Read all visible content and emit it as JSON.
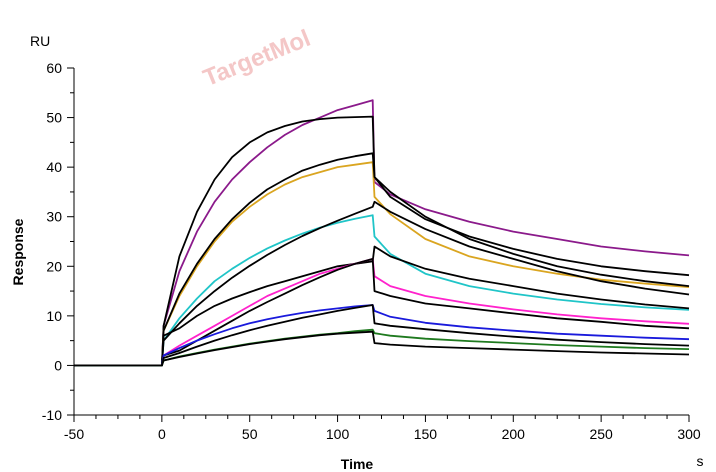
{
  "watermark": "TargetMol",
  "chart_data": {
    "type": "line",
    "title": "",
    "xlabel": "Time",
    "ylabel": "Response",
    "x_unit": "s",
    "y_unit": "RU",
    "xlim": [
      -50,
      300
    ],
    "ylim": [
      -10,
      60
    ],
    "x_ticks": [
      -50,
      0,
      50,
      100,
      150,
      200,
      250,
      300
    ],
    "y_ticks": [
      -10,
      0,
      10,
      20,
      30,
      40,
      50,
      60
    ],
    "grid": false,
    "legend": "none",
    "kinetics": {
      "injection_start": 0,
      "injection_end": 120,
      "baseline_start": -50
    },
    "series": [
      {
        "color": "#8b1a8b",
        "points": [
          [
            -50,
            0
          ],
          [
            0,
            0
          ],
          [
            1,
            8
          ],
          [
            10,
            19
          ],
          [
            20,
            27
          ],
          [
            30,
            33
          ],
          [
            40,
            37.5
          ],
          [
            50,
            41
          ],
          [
            60,
            44
          ],
          [
            70,
            46.5
          ],
          [
            80,
            48.5
          ],
          [
            90,
            50
          ],
          [
            100,
            51.5
          ],
          [
            110,
            52.5
          ],
          [
            120,
            53.5
          ],
          [
            121,
            37
          ],
          [
            130,
            34.5
          ],
          [
            150,
            31.5
          ],
          [
            175,
            29
          ],
          [
            200,
            27
          ],
          [
            225,
            25.5
          ],
          [
            250,
            24
          ],
          [
            275,
            23
          ],
          [
            300,
            22.2
          ]
        ]
      },
      {
        "color": "#000000",
        "points": [
          [
            -50,
            0
          ],
          [
            0,
            0
          ],
          [
            1,
            8
          ],
          [
            10,
            22
          ],
          [
            20,
            31
          ],
          [
            30,
            37.5
          ],
          [
            40,
            42
          ],
          [
            50,
            45
          ],
          [
            60,
            47
          ],
          [
            70,
            48.3
          ],
          [
            80,
            49.2
          ],
          [
            90,
            49.7
          ],
          [
            100,
            50
          ],
          [
            110,
            50.1
          ],
          [
            120,
            50.2
          ],
          [
            121,
            38
          ],
          [
            130,
            34
          ],
          [
            150,
            29.5
          ],
          [
            175,
            26
          ],
          [
            200,
            23.5
          ],
          [
            225,
            21.5
          ],
          [
            250,
            20
          ],
          [
            275,
            19
          ],
          [
            300,
            18.2
          ]
        ]
      },
      {
        "color": "#daa520",
        "points": [
          [
            -50,
            0
          ],
          [
            0,
            0
          ],
          [
            1,
            7
          ],
          [
            10,
            14
          ],
          [
            20,
            20
          ],
          [
            30,
            25
          ],
          [
            40,
            29
          ],
          [
            50,
            32
          ],
          [
            60,
            34.5
          ],
          [
            70,
            36.5
          ],
          [
            80,
            38
          ],
          [
            90,
            39
          ],
          [
            100,
            40
          ],
          [
            110,
            40.5
          ],
          [
            120,
            41
          ],
          [
            121,
            34
          ],
          [
            130,
            30.5
          ],
          [
            150,
            25.5
          ],
          [
            175,
            22
          ],
          [
            200,
            20
          ],
          [
            225,
            18.5
          ],
          [
            250,
            17.3
          ],
          [
            275,
            16.5
          ],
          [
            300,
            15.8
          ]
        ]
      },
      {
        "color": "#000000",
        "points": [
          [
            -50,
            0
          ],
          [
            0,
            0
          ],
          [
            1,
            7
          ],
          [
            10,
            14.5
          ],
          [
            20,
            20.5
          ],
          [
            30,
            25.5
          ],
          [
            40,
            29.5
          ],
          [
            50,
            32.8
          ],
          [
            60,
            35.5
          ],
          [
            70,
            37.5
          ],
          [
            80,
            39.3
          ],
          [
            90,
            40.5
          ],
          [
            100,
            41.5
          ],
          [
            110,
            42.2
          ],
          [
            120,
            42.8
          ],
          [
            121,
            38
          ],
          [
            130,
            35
          ],
          [
            150,
            30
          ],
          [
            175,
            25.5
          ],
          [
            200,
            22.5
          ],
          [
            225,
            20
          ],
          [
            250,
            18.3
          ],
          [
            275,
            17
          ],
          [
            300,
            16
          ]
        ]
      },
      {
        "color": "#20c5c8",
        "points": [
          [
            -50,
            0
          ],
          [
            0,
            0
          ],
          [
            1,
            5
          ],
          [
            10,
            9.5
          ],
          [
            20,
            13.5
          ],
          [
            30,
            17
          ],
          [
            40,
            19.5
          ],
          [
            50,
            21.7
          ],
          [
            60,
            23.6
          ],
          [
            70,
            25.2
          ],
          [
            80,
            26.6
          ],
          [
            90,
            27.8
          ],
          [
            100,
            28.8
          ],
          [
            110,
            29.6
          ],
          [
            120,
            30.3
          ],
          [
            121,
            26
          ],
          [
            130,
            22.5
          ],
          [
            150,
            18.5
          ],
          [
            175,
            16
          ],
          [
            200,
            14.5
          ],
          [
            225,
            13.3
          ],
          [
            250,
            12.4
          ],
          [
            275,
            11.7
          ],
          [
            300,
            11.2
          ]
        ]
      },
      {
        "color": "#000000",
        "points": [
          [
            -50,
            0
          ],
          [
            0,
            0
          ],
          [
            1,
            5
          ],
          [
            10,
            8.5
          ],
          [
            20,
            12
          ],
          [
            30,
            15
          ],
          [
            40,
            17.7
          ],
          [
            50,
            20.1
          ],
          [
            60,
            22.3
          ],
          [
            70,
            24.3
          ],
          [
            80,
            26.1
          ],
          [
            90,
            27.7
          ],
          [
            100,
            29.2
          ],
          [
            110,
            30.6
          ],
          [
            120,
            32
          ],
          [
            121,
            33
          ],
          [
            130,
            31
          ],
          [
            150,
            27.5
          ],
          [
            175,
            24
          ],
          [
            200,
            21.5
          ],
          [
            225,
            19
          ],
          [
            250,
            17
          ],
          [
            275,
            15.5
          ],
          [
            300,
            14.3
          ]
        ]
      },
      {
        "color": "#000000",
        "points": [
          [
            -50,
            0
          ],
          [
            0,
            0
          ],
          [
            1,
            6
          ],
          [
            10,
            7.5
          ],
          [
            20,
            10
          ],
          [
            30,
            12
          ],
          [
            40,
            13.5
          ],
          [
            50,
            14.8
          ],
          [
            60,
            16
          ],
          [
            70,
            17
          ],
          [
            80,
            18
          ],
          [
            90,
            19
          ],
          [
            100,
            20
          ],
          [
            110,
            20.5
          ],
          [
            120,
            21
          ],
          [
            121,
            24
          ],
          [
            130,
            22
          ],
          [
            150,
            19.5
          ],
          [
            175,
            17.5
          ],
          [
            200,
            16
          ],
          [
            225,
            14.5
          ],
          [
            250,
            13.3
          ],
          [
            275,
            12.3
          ],
          [
            300,
            11.5
          ]
        ]
      },
      {
        "color": "#ff22cc",
        "points": [
          [
            -50,
            0
          ],
          [
            0,
            0
          ],
          [
            1,
            2
          ],
          [
            10,
            4
          ],
          [
            20,
            6
          ],
          [
            30,
            8
          ],
          [
            40,
            10
          ],
          [
            50,
            12
          ],
          [
            60,
            14
          ],
          [
            70,
            15.5
          ],
          [
            80,
            17
          ],
          [
            90,
            18.5
          ],
          [
            100,
            19.5
          ],
          [
            110,
            20.5
          ],
          [
            120,
            21.5
          ],
          [
            121,
            18
          ],
          [
            130,
            16
          ],
          [
            150,
            14
          ],
          [
            175,
            12.5
          ],
          [
            200,
            11.3
          ],
          [
            225,
            10.3
          ],
          [
            250,
            9.5
          ],
          [
            275,
            8.9
          ],
          [
            300,
            8.4
          ]
        ]
      },
      {
        "color": "#000000",
        "points": [
          [
            -50,
            0
          ],
          [
            0,
            0
          ],
          [
            1,
            2
          ],
          [
            10,
            3
          ],
          [
            20,
            5
          ],
          [
            30,
            7
          ],
          [
            40,
            9
          ],
          [
            50,
            11
          ],
          [
            60,
            12.8
          ],
          [
            70,
            14.5
          ],
          [
            80,
            16.2
          ],
          [
            90,
            17.8
          ],
          [
            100,
            19.3
          ],
          [
            110,
            20.5
          ],
          [
            120,
            21.5
          ],
          [
            121,
            15
          ],
          [
            130,
            14
          ],
          [
            150,
            12.5
          ],
          [
            175,
            11.5
          ],
          [
            200,
            10.5
          ],
          [
            225,
            9.5
          ],
          [
            250,
            8.8
          ],
          [
            275,
            8
          ],
          [
            300,
            7.5
          ]
        ]
      },
      {
        "color": "#1a1adc",
        "points": [
          [
            -50,
            0
          ],
          [
            0,
            0
          ],
          [
            1,
            2
          ],
          [
            10,
            3.5
          ],
          [
            20,
            5
          ],
          [
            30,
            6.3
          ],
          [
            40,
            7.5
          ],
          [
            50,
            8.5
          ],
          [
            60,
            9.3
          ],
          [
            70,
            10
          ],
          [
            80,
            10.6
          ],
          [
            90,
            11.1
          ],
          [
            100,
            11.5
          ],
          [
            110,
            11.9
          ],
          [
            120,
            12.2
          ],
          [
            121,
            11
          ],
          [
            130,
            9.8
          ],
          [
            150,
            8.6
          ],
          [
            175,
            7.7
          ],
          [
            200,
            7
          ],
          [
            225,
            6.4
          ],
          [
            250,
            6
          ],
          [
            275,
            5.6
          ],
          [
            300,
            5.3
          ]
        ]
      },
      {
        "color": "#000000",
        "points": [
          [
            -50,
            0
          ],
          [
            0,
            0
          ],
          [
            1,
            1.5
          ],
          [
            10,
            2.5
          ],
          [
            20,
            3.8
          ],
          [
            30,
            5
          ],
          [
            40,
            6.1
          ],
          [
            50,
            7.1
          ],
          [
            60,
            8
          ],
          [
            70,
            8.8
          ],
          [
            80,
            9.6
          ],
          [
            90,
            10.3
          ],
          [
            100,
            11
          ],
          [
            110,
            11.6
          ],
          [
            120,
            12.2
          ],
          [
            121,
            8.5
          ],
          [
            130,
            8
          ],
          [
            150,
            7.3
          ],
          [
            175,
            6.5
          ],
          [
            200,
            5.8
          ],
          [
            225,
            5.2
          ],
          [
            250,
            4.7
          ],
          [
            275,
            4.3
          ],
          [
            300,
            4
          ]
        ]
      },
      {
        "color": "#1f7a1f",
        "points": [
          [
            -50,
            0
          ],
          [
            0,
            0
          ],
          [
            1,
            1
          ],
          [
            10,
            1.8
          ],
          [
            20,
            2.5
          ],
          [
            30,
            3.2
          ],
          [
            40,
            3.8
          ],
          [
            50,
            4.4
          ],
          [
            60,
            4.9
          ],
          [
            70,
            5.4
          ],
          [
            80,
            5.8
          ],
          [
            90,
            6.2
          ],
          [
            100,
            6.5
          ],
          [
            110,
            6.9
          ],
          [
            120,
            7.2
          ],
          [
            121,
            6.5
          ],
          [
            130,
            6
          ],
          [
            150,
            5.4
          ],
          [
            175,
            4.9
          ],
          [
            200,
            4.5
          ],
          [
            225,
            4.1
          ],
          [
            250,
            3.8
          ],
          [
            275,
            3.5
          ],
          [
            300,
            3.3
          ]
        ]
      },
      {
        "color": "#000000",
        "points": [
          [
            -50,
            0
          ],
          [
            0,
            0
          ],
          [
            1,
            1
          ],
          [
            10,
            1.7
          ],
          [
            20,
            2.4
          ],
          [
            30,
            3.1
          ],
          [
            40,
            3.7
          ],
          [
            50,
            4.3
          ],
          [
            60,
            4.8
          ],
          [
            70,
            5.3
          ],
          [
            80,
            5.7
          ],
          [
            90,
            6.1
          ],
          [
            100,
            6.4
          ],
          [
            110,
            6.6
          ],
          [
            120,
            6.8
          ],
          [
            121,
            4.5
          ],
          [
            130,
            4.2
          ],
          [
            150,
            3.8
          ],
          [
            175,
            3.5
          ],
          [
            200,
            3.2
          ],
          [
            225,
            2.9
          ],
          [
            250,
            2.6
          ],
          [
            275,
            2.4
          ],
          [
            300,
            2.2
          ]
        ]
      }
    ]
  }
}
